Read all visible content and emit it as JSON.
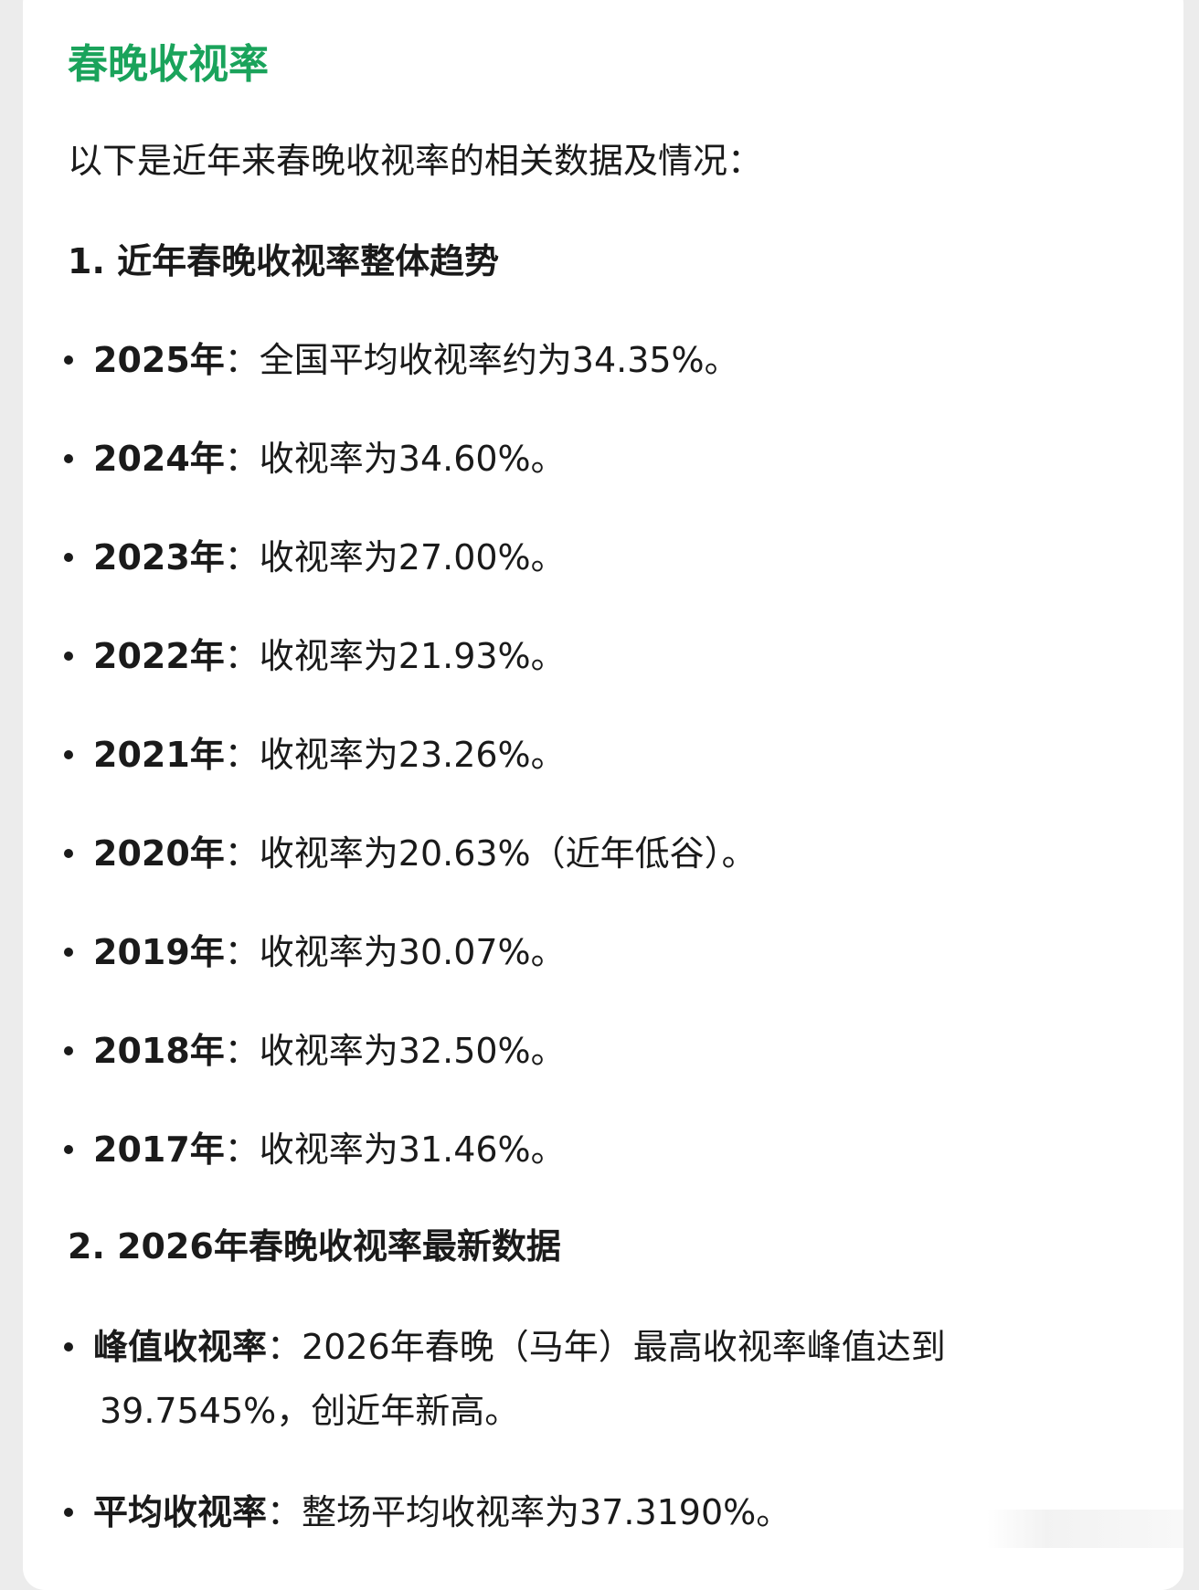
{
  "title": "春晚收视率",
  "intro": "以下是近年来春晚收视率的相关数据及情况：",
  "section1": {
    "heading": "1. 近年春晚收视率整体趋势",
    "items": [
      {
        "label": "2025年",
        "text": "：全国平均收视率约为34.35%。"
      },
      {
        "label": "2024年",
        "text": "：收视率为34.60%。"
      },
      {
        "label": "2023年",
        "text": "：收视率为27.00%。"
      },
      {
        "label": "2022年",
        "text": "：收视率为21.93%。"
      },
      {
        "label": "2021年",
        "text": "：收视率为23.26%。"
      },
      {
        "label": "2020年",
        "text": "：收视率为20.63%（近年低谷）。"
      },
      {
        "label": "2019年",
        "text": "：收视率为30.07%。"
      },
      {
        "label": "2018年",
        "text": "：收视率为32.50%。"
      },
      {
        "label": "2017年",
        "text": "：收视率为31.46%。"
      }
    ]
  },
  "section2": {
    "heading": "2. 2026年春晚收视率最新数据",
    "peak": {
      "label": "峰值收视率",
      "text": "：2026年春晚（马年）最高收视率峰值达到",
      "cont": "39.7545%，创近年新高。"
    },
    "avg": {
      "label": "平均收视率",
      "text": "：整场平均收视率为37.3190%。"
    }
  },
  "colors": {
    "title": "#1aa35b"
  }
}
